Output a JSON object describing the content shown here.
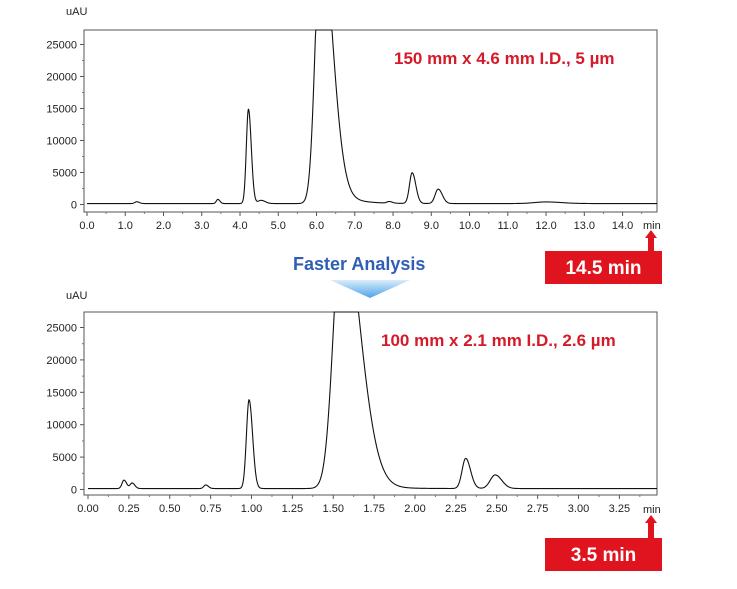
{
  "faster_label": "Faster Analysis",
  "colors": {
    "accent_red": "#e0141e",
    "spec_red": "#d51a2a",
    "arrow_blue": "#4ea3e8",
    "faster_blue": "#2f5fb5",
    "trace": "#111111"
  },
  "chart_data": [
    {
      "type": "line",
      "title": "",
      "annotation": "150 mm x 4.6 mm I.D., 5 µm",
      "ylabel": "uAU",
      "xunit": "min",
      "xlim": [
        0.0,
        14.9
      ],
      "ylim": [
        -600,
        27500
      ],
      "xticks": [
        "0.0",
        "1.0",
        "2.0",
        "3.0",
        "4.0",
        "5.0",
        "6.0",
        "7.0",
        "8.0",
        "9.0",
        "10.0",
        "11.0",
        "12.0",
        "13.0",
        "14.0"
      ],
      "yticks": [
        "0",
        "5000",
        "10000",
        "15000",
        "20000",
        "25000"
      ],
      "run_time_label": "14.5 min",
      "baseline": 150,
      "peaks": [
        {
          "rt": 1.3,
          "height": 280,
          "width": 0.05
        },
        {
          "rt": 3.42,
          "height": 650,
          "width": 0.04
        },
        {
          "rt": 4.22,
          "height": 14750,
          "width": 0.055
        },
        {
          "rt": 4.55,
          "height": 500,
          "width": 0.08
        },
        {
          "rt": 6.1,
          "height": 40000,
          "width": 0.14
        },
        {
          "rt": 7.9,
          "height": 250,
          "width": 0.06
        },
        {
          "rt": 8.5,
          "height": 4800,
          "width": 0.07
        },
        {
          "rt": 9.18,
          "height": 2250,
          "width": 0.08
        },
        {
          "rt": 12.0,
          "height": 250,
          "width": 0.3
        }
      ]
    },
    {
      "type": "line",
      "title": "",
      "annotation": "100 mm x 2.1 mm I.D., 2.6 µm",
      "ylabel": "uAU",
      "xunit": "min",
      "xlim": [
        0.0,
        3.48
      ],
      "ylim": [
        -600,
        27500
      ],
      "xticks": [
        "0.00",
        "0.25",
        "0.50",
        "0.75",
        "1.00",
        "1.25",
        "1.50",
        "1.75",
        "2.00",
        "2.25",
        "2.50",
        "2.75",
        "3.00",
        "3.25"
      ],
      "yticks": [
        "0",
        "5000",
        "10000",
        "15000",
        "20000",
        "25000"
      ],
      "run_time_label": "3.5 min",
      "baseline": 150,
      "peaks": [
        {
          "rt": 0.22,
          "height": 1300,
          "width": 0.012
        },
        {
          "rt": 0.27,
          "height": 850,
          "width": 0.012
        },
        {
          "rt": 0.72,
          "height": 550,
          "width": 0.012
        },
        {
          "rt": 0.985,
          "height": 13700,
          "width": 0.016
        },
        {
          "rt": 1.55,
          "height": 40000,
          "width": 0.05
        },
        {
          "rt": 2.31,
          "height": 4650,
          "width": 0.022
        },
        {
          "rt": 2.49,
          "height": 2100,
          "width": 0.03
        }
      ]
    }
  ]
}
